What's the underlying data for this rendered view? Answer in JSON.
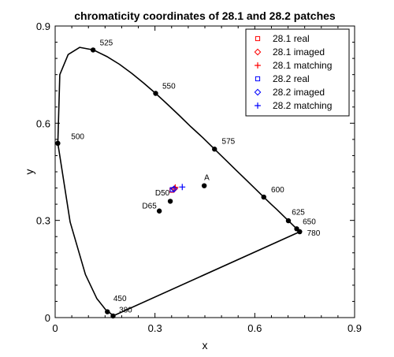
{
  "chart_data": {
    "type": "scatter",
    "title": "chromaticity coordinates of 28.1 and 28.2 patches",
    "xlabel": "x",
    "ylabel": "y",
    "xlim": [
      0,
      0.9
    ],
    "ylim": [
      0,
      0.9
    ],
    "xticks": [
      "0",
      "0.3",
      "0.6",
      "0.9"
    ],
    "yticks": [
      "0",
      "0.3",
      "0.6",
      "0.9"
    ],
    "xtick_values": [
      0,
      0.3,
      0.6,
      0.9
    ],
    "ytick_values": [
      0,
      0.3,
      0.6,
      0.9
    ],
    "grid": false,
    "legend_position": "top-right",
    "spectral_locus": [
      [
        0.174,
        0.005
      ],
      [
        0.174,
        0.006
      ],
      [
        0.173,
        0.005
      ],
      [
        0.168,
        0.012
      ],
      [
        0.152,
        0.024
      ],
      [
        0.125,
        0.059
      ],
      [
        0.091,
        0.133
      ],
      [
        0.045,
        0.295
      ],
      [
        0.008,
        0.538
      ],
      [
        0.014,
        0.75
      ],
      [
        0.039,
        0.812
      ],
      [
        0.074,
        0.834
      ],
      [
        0.115,
        0.826
      ],
      [
        0.155,
        0.806
      ],
      [
        0.193,
        0.782
      ],
      [
        0.23,
        0.754
      ],
      [
        0.266,
        0.724
      ],
      [
        0.302,
        0.692
      ],
      [
        0.337,
        0.659
      ],
      [
        0.373,
        0.624
      ],
      [
        0.408,
        0.589
      ],
      [
        0.444,
        0.555
      ],
      [
        0.479,
        0.52
      ],
      [
        0.512,
        0.487
      ],
      [
        0.545,
        0.454
      ],
      [
        0.575,
        0.424
      ],
      [
        0.603,
        0.396
      ],
      [
        0.627,
        0.372
      ],
      [
        0.648,
        0.351
      ],
      [
        0.666,
        0.334
      ],
      [
        0.68,
        0.32
      ],
      [
        0.692,
        0.308
      ],
      [
        0.701,
        0.299
      ],
      [
        0.735,
        0.265
      ],
      [
        0.174,
        0.005
      ]
    ],
    "wavelength_points": [
      {
        "label": "380",
        "x": 0.174,
        "y": 0.005,
        "dx": 0.018,
        "dy": 0.018
      },
      {
        "label": "450",
        "x": 0.157,
        "y": 0.018,
        "dx": 0.018,
        "dy": 0.04
      },
      {
        "label": "500",
        "x": 0.008,
        "y": 0.538,
        "dx": 0.04,
        "dy": 0.02
      },
      {
        "label": "525",
        "x": 0.114,
        "y": 0.826,
        "dx": 0.02,
        "dy": 0.022
      },
      {
        "label": "550",
        "x": 0.302,
        "y": 0.692,
        "dx": 0.02,
        "dy": 0.022
      },
      {
        "label": "575",
        "x": 0.479,
        "y": 0.52,
        "dx": 0.022,
        "dy": 0.024
      },
      {
        "label": "600",
        "x": 0.627,
        "y": 0.372,
        "dx": 0.022,
        "dy": 0.022
      },
      {
        "label": "625",
        "x": 0.701,
        "y": 0.299,
        "dx": 0.01,
        "dy": 0.026
      },
      {
        "label": "650",
        "x": 0.726,
        "y": 0.274,
        "dx": 0.018,
        "dy": 0.022
      },
      {
        "label": "780",
        "x": 0.735,
        "y": 0.265,
        "dx": 0.022,
        "dy": -0.005
      }
    ],
    "reference_points": [
      {
        "label": "A",
        "x": 0.448,
        "y": 0.407,
        "dx": 0.0,
        "dy": 0.025,
        "anchor": "start"
      },
      {
        "label": "D50",
        "x": 0.346,
        "y": 0.359,
        "dx": -0.002,
        "dy": 0.025,
        "anchor": "end"
      },
      {
        "label": "D65",
        "x": 0.313,
        "y": 0.329,
        "dx": -0.008,
        "dy": 0.015,
        "anchor": "end"
      }
    ],
    "series": [
      {
        "name": "28.1 real",
        "marker": "square",
        "color": "#ff0000",
        "points": [
          [
            0.351,
            0.393
          ]
        ]
      },
      {
        "name": "28.1 imaged",
        "marker": "diamond",
        "color": "#ff0000",
        "points": [
          [
            0.359,
            0.398
          ]
        ]
      },
      {
        "name": "28.1 matching",
        "marker": "plus",
        "color": "#ff0000",
        "points": [
          [
            0.361,
            0.402
          ]
        ]
      },
      {
        "name": "28.2 real",
        "marker": "square",
        "color": "#0000ff",
        "points": [
          [
            0.352,
            0.395
          ]
        ]
      },
      {
        "name": "28.2 imaged",
        "marker": "diamond",
        "color": "#0000ff",
        "points": [
          [
            0.357,
            0.397
          ]
        ]
      },
      {
        "name": "28.2 matching",
        "marker": "plus",
        "color": "#0000ff",
        "points": [
          [
            0.382,
            0.403
          ]
        ]
      }
    ]
  }
}
